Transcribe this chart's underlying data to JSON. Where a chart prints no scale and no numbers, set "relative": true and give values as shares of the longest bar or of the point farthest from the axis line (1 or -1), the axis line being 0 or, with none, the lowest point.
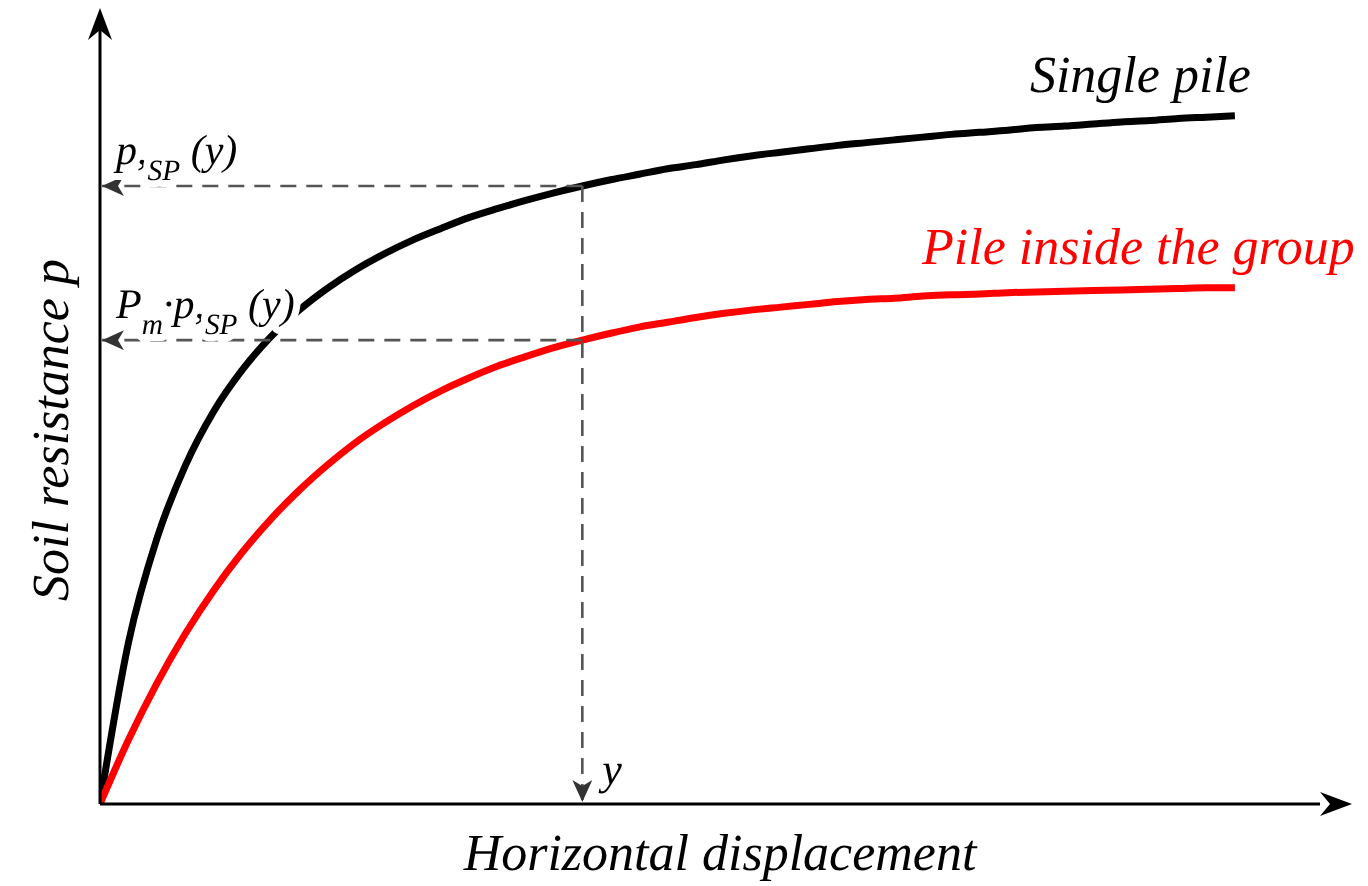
{
  "chart_data": {
    "type": "line",
    "relative": true,
    "xlabel": "Horizontal displacement",
    "ylabel": "Soil resistance p",
    "categories": [
      null,
      null,
      null,
      null,
      null,
      null,
      null,
      null,
      null,
      null,
      null,
      null,
      null,
      null,
      null,
      null,
      null,
      null,
      null,
      null,
      null,
      null,
      null,
      null,
      null,
      null,
      null,
      null,
      null,
      null,
      null,
      null,
      null,
      null,
      null,
      null,
      null,
      null,
      null,
      null,
      null,
      null,
      null,
      null
    ],
    "series": [
      {
        "name": "Single pile",
        "color": "#000000",
        "values": [
          0,
          0.234,
          0.385,
          0.491,
          0.57,
          0.63,
          0.678,
          0.717,
          0.749,
          0.776,
          0.799,
          0.819,
          0.836,
          0.852,
          0.865,
          0.877,
          0.888,
          0.898,
          0.907,
          0.915,
          0.923,
          0.929,
          0.936,
          0.942,
          0.947,
          0.952,
          0.957,
          0.961,
          0.965,
          0.969,
          0.973,
          0.976,
          0.979,
          0.983,
          0.985,
          0.988,
          0.991,
          0.993,
          0.996,
          0.998,
          1.0,
          null,
          null,
          null
        ]
      },
      {
        "name": "Pile inside the group",
        "color": "#ff0000",
        "values": [
          0,
          0.093,
          0.175,
          0.247,
          0.31,
          0.365,
          0.413,
          0.455,
          0.492,
          0.525,
          0.553,
          0.578,
          0.6,
          0.619,
          0.636,
          0.65,
          0.663,
          0.674,
          0.684,
          0.693,
          0.7,
          0.707,
          0.713,
          0.718,
          0.722,
          0.726,
          0.73,
          0.733,
          0.735,
          0.738,
          0.74,
          0.741,
          0.743,
          0.744,
          0.745,
          0.746,
          0.747,
          0.748,
          0.749,
          0.75,
          0.75,
          null,
          null,
          null
        ]
      }
    ],
    "ref_lines": [
      {
        "axis": "y",
        "value": 0.898,
        "label": "p,$_{SP}$ (y)",
        "color": "#555555",
        "line_style": "dashed"
      },
      {
        "axis": "y",
        "value": 0.674,
        "label": "P$_{m}$·p,$_{SP}$ (y)",
        "color": "#555555",
        "line_style": "dashed"
      }
    ],
    "annotations": [
      "y"
    ]
  }
}
